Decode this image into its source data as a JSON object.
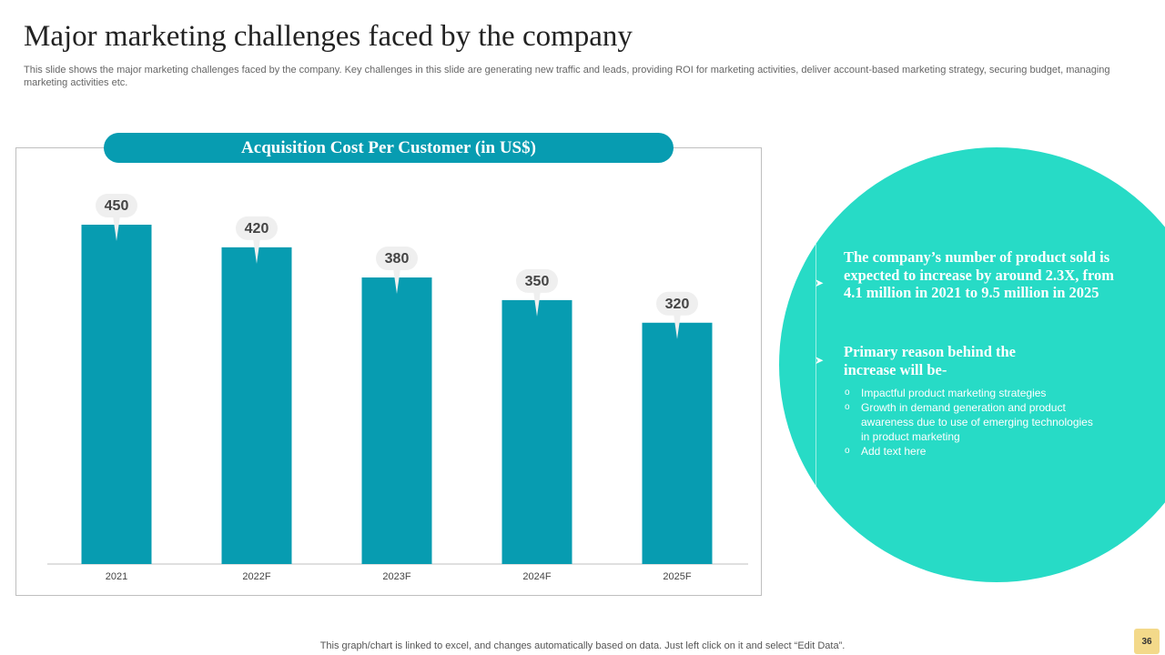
{
  "slide": {
    "title": "Major marketing challenges faced by the company",
    "subtitle": "This slide shows the major marketing challenges faced by the company. Key challenges in this slide are generating new traffic and leads, providing ROI for marketing activities, deliver account-based marketing strategy, securing budget, managing marketing activities etc.",
    "footer_note": "This graph/chart is linked to excel,  and changes automatically based on data. Just left click on it and select “Edit Data”.",
    "page_number": "36"
  },
  "chart_data": {
    "type": "bar",
    "title": "Acquisition Cost Per Customer (in US$)",
    "categories": [
      "2021",
      "2022F",
      "2023F",
      "2024F",
      "2025F"
    ],
    "values": [
      450,
      420,
      380,
      350,
      320
    ],
    "xlabel": "",
    "ylabel": "",
    "ylim": [
      0,
      450
    ],
    "grid": false,
    "legend": "none",
    "bar_color": "#079cb1",
    "label_bubble_color": "#efefef"
  },
  "panel": {
    "circle_color": "#27dbc6",
    "point1": "The company’s number of product sold is expected to increase by around 2.3X,  from 4.1 million in 2021 to 9.5 million in 2025",
    "point2": "Primary reason behind the increase will be-",
    "bullet_marker": "o",
    "bullets": [
      "Impactful product marketing strategies",
      "Growth in demand generation and product awareness due to use of emerging technologies in product marketing",
      "Add text here"
    ]
  }
}
